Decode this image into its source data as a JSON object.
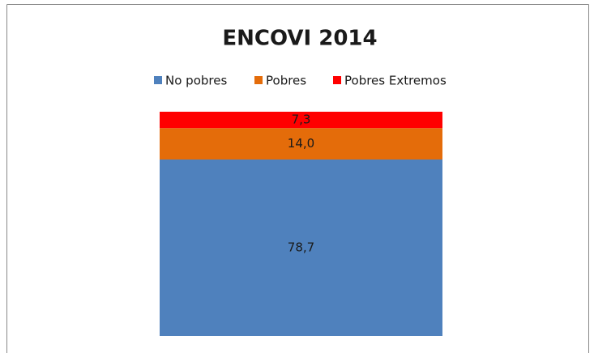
{
  "chart_data": {
    "type": "stacked_bar",
    "title": "ENCOVI 2014",
    "categories": [
      null
    ],
    "series": [
      {
        "name": "No pobres",
        "color": "#4f81bd",
        "values": [
          78.7
        ],
        "value_labels": [
          "78,7"
        ]
      },
      {
        "name": "Pobres",
        "color": "#e46c0a",
        "values": [
          14.0
        ],
        "value_labels": [
          "14,0"
        ]
      },
      {
        "name": "Pobres Extremos",
        "color": "#ff0000",
        "values": [
          7.3
        ],
        "value_labels": [
          "7,3"
        ]
      }
    ],
    "legend": "top"
  }
}
